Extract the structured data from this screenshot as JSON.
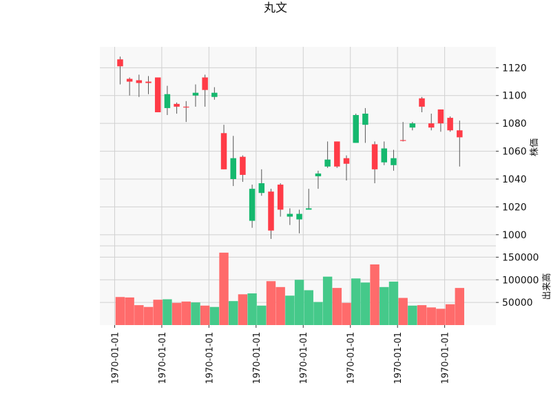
{
  "chart_data": {
    "type": "candlestick",
    "title": "丸文",
    "price_axis_label": "株価",
    "volume_axis_label": "出来高",
    "x_tick_labels": [
      "1970-01-01",
      "1970-01-01",
      "1970-01-01",
      "1970-01-01",
      "1970-01-01",
      "1970-01-01",
      "1970-01-01",
      "1970-01-01"
    ],
    "price_ylim": [
      992,
      1135
    ],
    "price_ticks": [
      1000,
      1020,
      1040,
      1060,
      1080,
      1100,
      1120
    ],
    "volume_ylim": [
      0,
      175000
    ],
    "volume_ticks": [
      50000,
      100000,
      150000
    ],
    "grid": true,
    "colors": {
      "up": "#ff3b47",
      "down": "#15b86e",
      "up_volume": "#ff6b6b",
      "down_volume": "#45c98a",
      "panel_bg": "#f8f8f8",
      "grid": "#d0d0d0"
    },
    "candles": [
      {
        "o": 1121,
        "h": 1128,
        "l": 1108,
        "c": 1126,
        "v": 62000
      },
      {
        "o": 1110,
        "h": 1113,
        "l": 1100,
        "c": 1112,
        "v": 61000
      },
      {
        "o": 1109,
        "h": 1115,
        "l": 1099,
        "c": 1111,
        "v": 44000
      },
      {
        "o": 1109,
        "h": 1114,
        "l": 1101,
        "c": 1110,
        "v": 40000
      },
      {
        "o": 1088,
        "h": 1113,
        "l": 1088,
        "c": 1113,
        "v": 56000
      },
      {
        "o": 1101,
        "h": 1107,
        "l": 1086,
        "c": 1091,
        "v": 57000
      },
      {
        "o": 1092,
        "h": 1095,
        "l": 1087,
        "c": 1094,
        "v": 49000
      },
      {
        "o": 1092,
        "h": 1096,
        "l": 1081,
        "c": 1092,
        "v": 52000
      },
      {
        "o": 1102,
        "h": 1108,
        "l": 1092,
        "c": 1100,
        "v": 50000
      },
      {
        "o": 1104,
        "h": 1115,
        "l": 1092,
        "c": 1113,
        "v": 43000
      },
      {
        "o": 1102,
        "h": 1106,
        "l": 1097,
        "c": 1099,
        "v": 40000
      },
      {
        "o": 1047,
        "h": 1079,
        "l": 1047,
        "c": 1073,
        "v": 160000
      },
      {
        "o": 1055,
        "h": 1071,
        "l": 1035,
        "c": 1040,
        "v": 53000
      },
      {
        "o": 1043,
        "h": 1057,
        "l": 1038,
        "c": 1056,
        "v": 68000
      },
      {
        "o": 1033,
        "h": 1036,
        "l": 1005,
        "c": 1010,
        "v": 70000
      },
      {
        "o": 1037,
        "h": 1047,
        "l": 1028,
        "c": 1030,
        "v": 43000
      },
      {
        "o": 1003,
        "h": 1033,
        "l": 997,
        "c": 1031,
        "v": 97000
      },
      {
        "o": 1018,
        "h": 1037,
        "l": 1013,
        "c": 1036,
        "v": 84000
      },
      {
        "o": 1015,
        "h": 1019,
        "l": 1007,
        "c": 1013,
        "v": 65000
      },
      {
        "o": 1015,
        "h": 1018,
        "l": 1001,
        "c": 1011,
        "v": 100000
      },
      {
        "o": 1019,
        "h": 1033,
        "l": 1018,
        "c": 1018,
        "v": 77000
      },
      {
        "o": 1044,
        "h": 1046,
        "l": 1033,
        "c": 1042,
        "v": 51000
      },
      {
        "o": 1054,
        "h": 1067,
        "l": 1048,
        "c": 1049,
        "v": 107000
      },
      {
        "o": 1049,
        "h": 1067,
        "l": 1048,
        "c": 1067,
        "v": 82000
      },
      {
        "o": 1051,
        "h": 1057,
        "l": 1039,
        "c": 1055,
        "v": 49000
      },
      {
        "o": 1086,
        "h": 1087,
        "l": 1066,
        "c": 1066,
        "v": 103000
      },
      {
        "o": 1087,
        "h": 1091,
        "l": 1066,
        "c": 1079,
        "v": 94000
      },
      {
        "o": 1047,
        "h": 1067,
        "l": 1037,
        "c": 1065,
        "v": 134000
      },
      {
        "o": 1062,
        "h": 1067,
        "l": 1050,
        "c": 1052,
        "v": 84000
      },
      {
        "o": 1055,
        "h": 1061,
        "l": 1046,
        "c": 1050,
        "v": 96000
      },
      {
        "o": 1068,
        "h": 1081,
        "l": 1067,
        "c": 1068,
        "v": 60000
      },
      {
        "o": 1080,
        "h": 1081,
        "l": 1075,
        "c": 1077,
        "v": 43000
      },
      {
        "o": 1092,
        "h": 1099,
        "l": 1088,
        "c": 1098,
        "v": 44000
      },
      {
        "o": 1077,
        "h": 1087,
        "l": 1075,
        "c": 1080,
        "v": 39000
      },
      {
        "o": 1080,
        "h": 1090,
        "l": 1074,
        "c": 1090,
        "v": 36000
      },
      {
        "o": 1075,
        "h": 1085,
        "l": 1074,
        "c": 1084,
        "v": 46000
      },
      {
        "o": 1070,
        "h": 1082,
        "l": 1049,
        "c": 1075,
        "v": 82000
      }
    ]
  }
}
